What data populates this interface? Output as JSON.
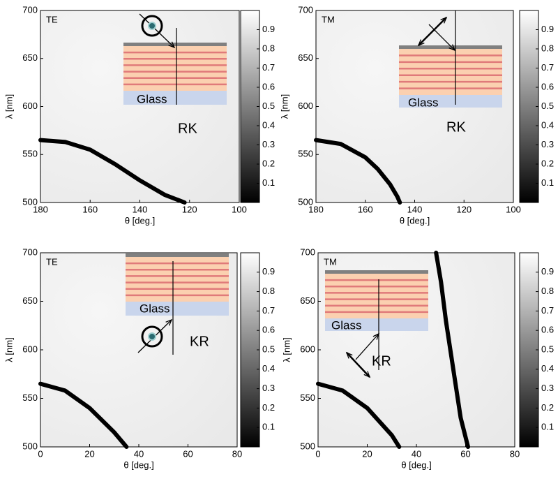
{
  "chart_data": [
    {
      "type": "heatmap",
      "pol": "TE",
      "structure_label": "RK",
      "substrate": "Glass",
      "xlabel": "θ [deg.]",
      "ylabel": "λ [nm]",
      "xlim": [
        180,
        100
      ],
      "xticks": [
        180,
        160,
        140,
        120,
        100
      ],
      "ylim": [
        500,
        700
      ],
      "yticks": [
        500,
        550,
        600,
        650,
        700
      ],
      "clim": [
        0,
        1
      ],
      "cticks": [
        0.1,
        0.2,
        0.3,
        0.4,
        0.5,
        0.6,
        0.7,
        0.8,
        0.9
      ],
      "series": [
        {
          "color": "#000000",
          "x": [
            180,
            170,
            160,
            150,
            140,
            130,
            122
          ],
          "values": [
            565,
            563,
            555,
            540,
            523,
            508,
            500
          ]
        }
      ]
    },
    {
      "type": "heatmap",
      "pol": "TM",
      "structure_label": "RK",
      "substrate": "Glass",
      "xlabel": "θ [deg.]",
      "ylabel": "λ [nm]",
      "xlim": [
        180,
        100
      ],
      "xticks": [
        180,
        160,
        140,
        120,
        100
      ],
      "ylim": [
        500,
        700
      ],
      "yticks": [
        500,
        550,
        600,
        650,
        700
      ],
      "clim": [
        0,
        1
      ],
      "cticks": [
        0.1,
        0.2,
        0.3,
        0.4,
        0.5,
        0.6,
        0.7,
        0.8,
        0.9
      ],
      "series": [
        {
          "color": "#000000",
          "x": [
            180,
            170,
            160,
            155,
            150,
            147,
            146
          ],
          "values": [
            565,
            561,
            547,
            535,
            519,
            506,
            500
          ]
        }
      ]
    },
    {
      "type": "heatmap",
      "pol": "TE",
      "structure_label": "KR",
      "substrate": "Glass",
      "xlabel": "θ [deg.]",
      "ylabel": "λ [nm]",
      "xlim": [
        0,
        80
      ],
      "xticks": [
        0,
        20,
        40,
        60,
        80
      ],
      "ylim": [
        500,
        700
      ],
      "yticks": [
        500,
        550,
        600,
        650,
        700
      ],
      "clim": [
        0,
        1
      ],
      "cticks": [
        0.1,
        0.2,
        0.3,
        0.4,
        0.5,
        0.6,
        0.7,
        0.8,
        0.9
      ],
      "series": [
        {
          "color": "#000000",
          "x": [
            0,
            10,
            20,
            30,
            35
          ],
          "values": [
            565,
            558,
            540,
            515,
            500
          ]
        }
      ]
    },
    {
      "type": "heatmap",
      "pol": "TM",
      "structure_label": "KR",
      "substrate": "Glass",
      "xlabel": "θ [deg.]",
      "ylabel": "λ [nm]",
      "xlim": [
        0,
        80
      ],
      "xticks": [
        0,
        20,
        40,
        60,
        80
      ],
      "ylim": [
        500,
        700
      ],
      "yticks": [
        500,
        550,
        600,
        650,
        700
      ],
      "clim": [
        0,
        1
      ],
      "cticks": [
        0.1,
        0.2,
        0.3,
        0.4,
        0.5,
        0.6,
        0.7,
        0.8,
        0.9
      ],
      "series": [
        {
          "color": "#000000",
          "x": [
            0,
            10,
            20,
            30,
            33
          ],
          "values": [
            565,
            558,
            540,
            512,
            500
          ]
        },
        {
          "color": "#000000",
          "x": [
            48,
            50,
            52,
            55,
            58,
            61
          ],
          "values": [
            700,
            670,
            630,
            580,
            530,
            500
          ]
        }
      ]
    }
  ]
}
